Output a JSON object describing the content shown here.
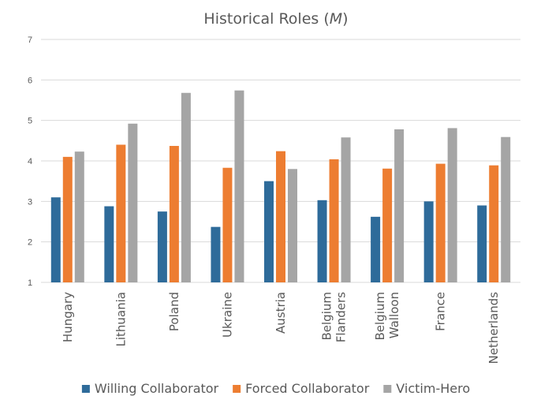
{
  "chart_data": {
    "type": "bar",
    "title_main": "Historical Roles (",
    "title_symbol": "M",
    "title_close": ")",
    "categories": [
      [
        "Hungary"
      ],
      [
        "Lithuania"
      ],
      [
        "Poland"
      ],
      [
        "Ukraine"
      ],
      [
        "Austria"
      ],
      [
        "Belgium",
        "Flanders"
      ],
      [
        "Belgium",
        "Walloon"
      ],
      [
        "France"
      ],
      [
        "Netherlands"
      ]
    ],
    "series": [
      {
        "name": "Willing Collaborator",
        "color": "#2e6b9a",
        "values": [
          3.1,
          2.88,
          2.75,
          2.37,
          3.5,
          3.03,
          2.62,
          3.0,
          2.9
        ]
      },
      {
        "name": "Forced Collaborator",
        "color": "#ed7d31",
        "values": [
          4.1,
          4.4,
          4.37,
          3.83,
          4.24,
          4.04,
          3.81,
          3.93,
          3.89
        ]
      },
      {
        "name": "Victim-Hero",
        "color": "#a5a5a5",
        "values": [
          4.23,
          4.92,
          5.68,
          5.74,
          3.8,
          4.58,
          4.78,
          4.81,
          4.59
        ]
      }
    ],
    "ylim": [
      1,
      7
    ],
    "yticks": [
      1,
      2,
      3,
      4,
      5,
      6,
      7
    ],
    "grid": true,
    "legend_position": "bottom"
  }
}
